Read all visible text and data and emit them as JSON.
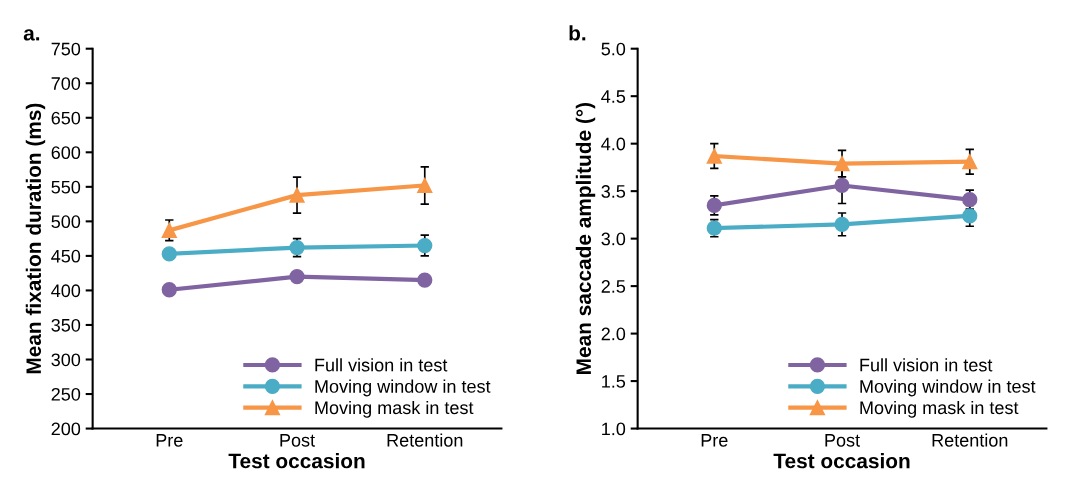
{
  "chart_data": [
    {
      "type": "line",
      "title": "a.",
      "xlabel": "Test occasion",
      "ylabel": "Mean fixation duration (ms)",
      "categories": [
        "Pre",
        "Post",
        "Retention"
      ],
      "ylim": [
        200,
        750
      ],
      "yticks": [
        200,
        250,
        300,
        350,
        400,
        450,
        500,
        550,
        600,
        650,
        700,
        750
      ],
      "grid": false,
      "legend": "bottom right",
      "line_style": "solid",
      "series": [
        {
          "name": "Full vision in test",
          "color": "#8064a2",
          "marker": "circle",
          "values": [
            401,
            420,
            415
          ],
          "errors": [
            null,
            null,
            null
          ]
        },
        {
          "name": "Moving window in test",
          "color": "#4bacc6",
          "marker": "circle",
          "values": [
            453,
            462,
            465
          ],
          "errors": [
            null,
            13,
            15
          ]
        },
        {
          "name": "Moving mask in test",
          "color": "#f79646",
          "marker": "triangle",
          "values": [
            487,
            538,
            552
          ],
          "errors": [
            15,
            26,
            27
          ]
        }
      ]
    },
    {
      "type": "line",
      "title": "b.",
      "xlabel": "Test occasion",
      "ylabel": "Mean saccade amplitude (°)",
      "categories": [
        "Pre",
        "Post",
        "Retention"
      ],
      "ylim": [
        1.0,
        5.0
      ],
      "yticks": [
        {
          "value": 1.0,
          "label": "1.0"
        },
        1.5,
        {
          "value": 2.0,
          "label": "2.0"
        },
        2.5,
        {
          "value": 3.0,
          "label": "3.0"
        },
        3.5,
        {
          "value": 4.0,
          "label": "4.0"
        },
        4.5,
        {
          "value": 5.0,
          "label": "5.0"
        }
      ],
      "grid": false,
      "legend": "bottom right",
      "line_style": "solid",
      "series": [
        {
          "name": "Full vision in test",
          "color": "#8064a2",
          "marker": "circle",
          "values": [
            3.35,
            3.56,
            3.41
          ],
          "errors": [
            0.1,
            0.19,
            0.1
          ]
        },
        {
          "name": "Moving window in test",
          "color": "#4bacc6",
          "marker": "circle",
          "values": [
            3.11,
            3.15,
            3.24
          ],
          "errors": [
            0.09,
            0.12,
            0.11
          ]
        },
        {
          "name": "Moving mask in test",
          "color": "#f79646",
          "marker": "triangle",
          "values": [
            3.87,
            3.79,
            3.81
          ],
          "errors": [
            0.13,
            0.14,
            0.13
          ]
        }
      ]
    }
  ]
}
